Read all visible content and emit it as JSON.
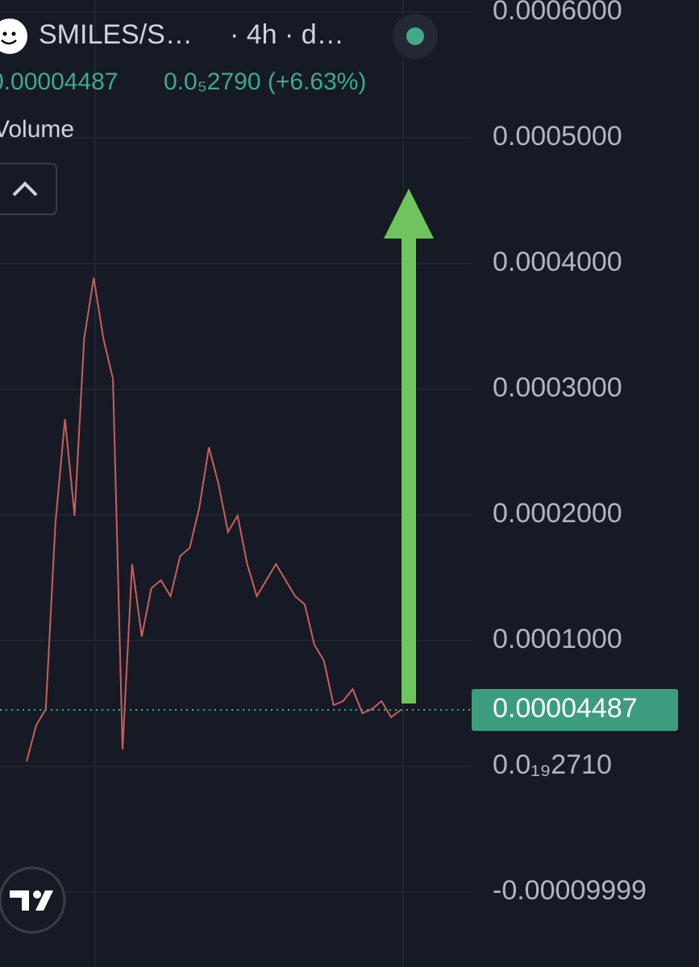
{
  "header": {
    "symbol": "SMILES/S…",
    "interval": "· 4h · d…",
    "change": "0.0₅2790 (+6.63%)",
    "indicator": "Volume"
  },
  "chart_data": {
    "type": "line",
    "categories": [
      null,
      null,
      null,
      null,
      null,
      null,
      null,
      null,
      null,
      null,
      null,
      null,
      null,
      null,
      null,
      null,
      null,
      null,
      null,
      null,
      null,
      null,
      null,
      null,
      null,
      null,
      null,
      null,
      null,
      null,
      null,
      null,
      null,
      null,
      null,
      null,
      null,
      null,
      null,
      null
    ],
    "series": [
      {
        "color": "#c85f5b",
        "values": [
          3.8e-06,
          3.27e-05,
          4.55e-05,
          0.0001929,
          0.0002763,
          0.0001994,
          0.0003404,
          0.0003885,
          0.0003404,
          0.0003083,
          1.35e-05,
          0.0001609,
          0.0001032,
          0.0001417,
          0.0001481,
          0.0001353,
          0.0001673,
          0.0001737,
          0.0002058,
          0.0002538,
          0.000225,
          0.0001865,
          0.0001994,
          0.0001609,
          0.0001353,
          0.0001481,
          0.0001609,
          0.0001481,
          0.0001353,
          0.0001288,
          9.68e-05,
          8.4e-05,
          4.87e-05,
          5.19e-05,
          6.15e-05,
          4.23e-05,
          4.55e-05,
          5.19e-05,
          3.91e-05,
          4.487e-05
        ]
      }
    ],
    "current_price": 4.487e-05,
    "ylim": [
      -0.0001596,
      0.0006096
    ],
    "yticks": [
      {
        "value": 0.0006,
        "label": "0.0006000"
      },
      {
        "value": 0.0005,
        "label": "0.0005000"
      },
      {
        "value": 0.0004,
        "label": "0.0004000"
      },
      {
        "value": 0.0003,
        "label": "0.0003000"
      },
      {
        "value": 0.0002,
        "label": "0.0002000"
      },
      {
        "value": 0.0001,
        "label": "0.0001000"
      },
      {
        "value": 2.71e-20,
        "label": "0.0₁₉2710"
      },
      {
        "value": -9.999e-05,
        "label": "-0.00009999"
      }
    ],
    "grid": true
  }
}
